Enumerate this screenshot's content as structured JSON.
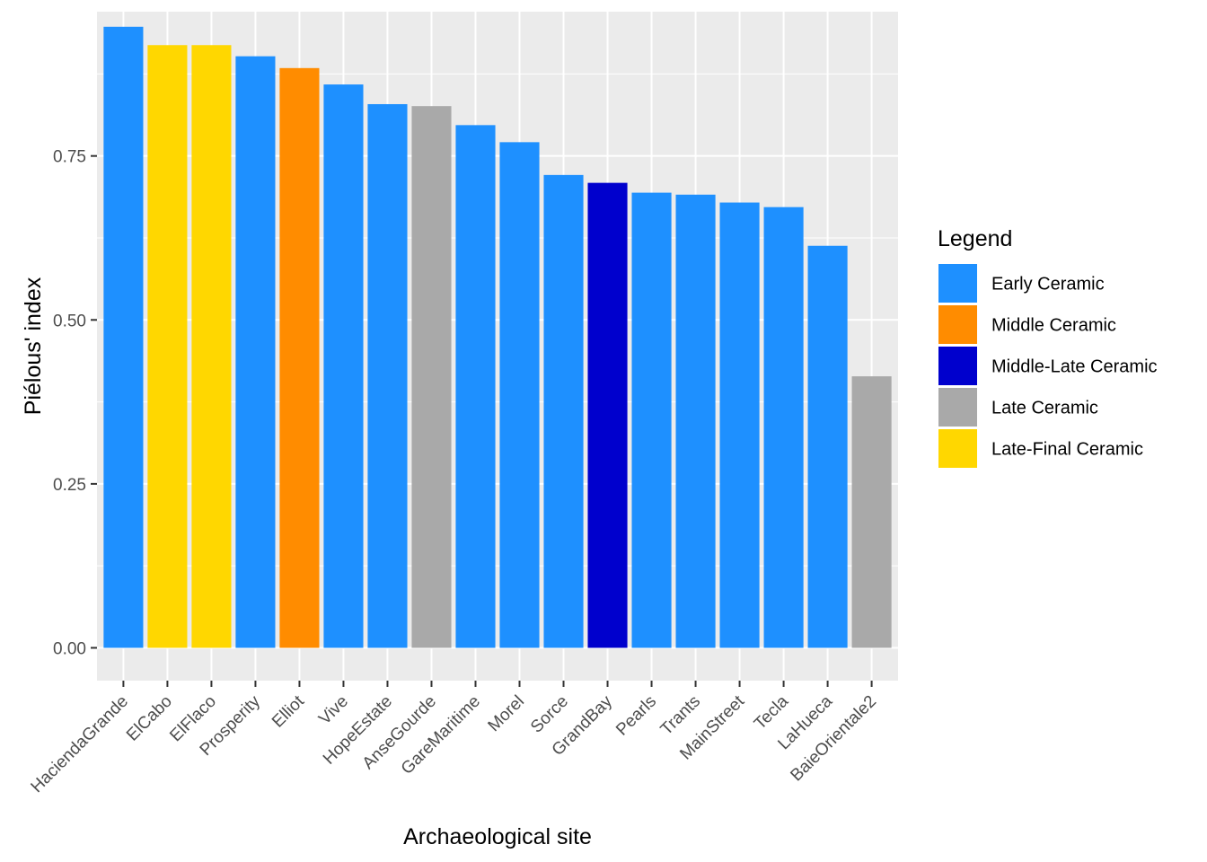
{
  "chart_data": {
    "type": "bar",
    "title": "",
    "xlabel": "Archaeological site",
    "ylabel": "Piélous' index",
    "ylim": [
      -0.05,
      0.97
    ],
    "yticks": [
      0,
      0.25,
      0.5,
      0.75
    ],
    "ytick_labels": [
      "0.00",
      "0.25",
      "0.50",
      "0.75"
    ],
    "grid": true,
    "legend_position": "right",
    "categories": [
      "HaciendaGrande",
      "ElCabo",
      "ElFlaco",
      "Prosperity",
      "Elliot",
      "Vive",
      "HopeEstate",
      "AnseGourde",
      "GareMaritime",
      "Morel",
      "Sorce",
      "GrandBay",
      "Pearls",
      "Trants",
      "MainStreet",
      "Tecla",
      "LaHueca",
      "BaieOrientale2"
    ],
    "values": [
      0.947,
      0.919,
      0.919,
      0.902,
      0.884,
      0.859,
      0.829,
      0.826,
      0.797,
      0.771,
      0.721,
      0.709,
      0.694,
      0.691,
      0.679,
      0.672,
      0.613,
      0.414
    ],
    "groups": [
      "Early Ceramic",
      "Late-Final Ceramic",
      "Late-Final Ceramic",
      "Early Ceramic",
      "Middle Ceramic",
      "Early Ceramic",
      "Early Ceramic",
      "Late Ceramic",
      "Early Ceramic",
      "Early Ceramic",
      "Early Ceramic",
      "Middle-Late Ceramic",
      "Early Ceramic",
      "Early Ceramic",
      "Early Ceramic",
      "Early Ceramic",
      "Early Ceramic",
      "Late Ceramic"
    ],
    "legend": {
      "title": "Legend",
      "entries": [
        {
          "label": "Early Ceramic",
          "color": "#1e90ff"
        },
        {
          "label": "Middle Ceramic",
          "color": "#ff8c00"
        },
        {
          "label": "Middle-Late Ceramic",
          "color": "#0000cd"
        },
        {
          "label": "Late Ceramic",
          "color": "#a9a9a9"
        },
        {
          "label": "Late-Final Ceramic",
          "color": "#ffd700"
        }
      ]
    },
    "panel_color": "#ebebeb",
    "grid_color": "#ffffff"
  }
}
